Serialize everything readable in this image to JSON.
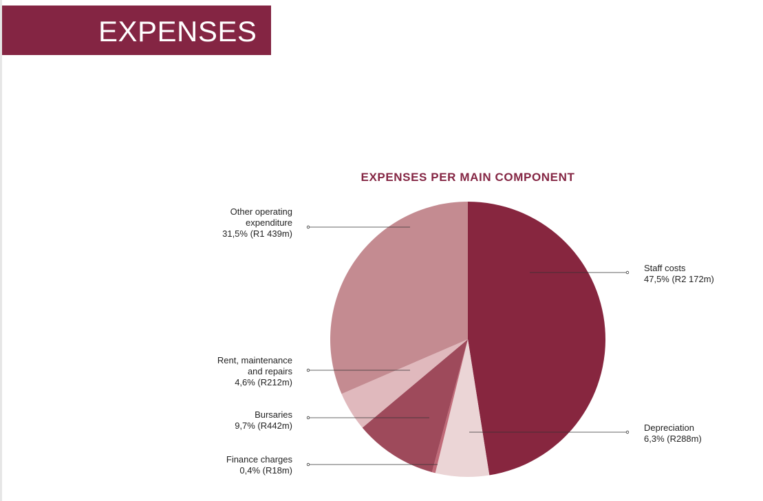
{
  "header": {
    "title": "EXPENSES"
  },
  "colors": {
    "brand": "#842543"
  },
  "chart_data": {
    "type": "pie",
    "title": "EXPENSES PER MAIN COMPONENT",
    "slices": [
      {
        "name": "Staff costs",
        "label_lines": [
          "Staff costs"
        ],
        "value_text": "47,5% (R2 172m)",
        "percent": 47.5,
        "amount_rm": 2172,
        "color": "#87263f"
      },
      {
        "name": "Depreciation",
        "label_lines": [
          "Depreciation"
        ],
        "value_text": "6,3% (R288m)",
        "percent": 6.3,
        "amount_rm": 288,
        "color": "#ebd5d6"
      },
      {
        "name": "Finance charges",
        "label_lines": [
          "Finance charges"
        ],
        "value_text": "0,4% (R18m)",
        "percent": 0.4,
        "amount_rm": 18,
        "color": "#c06a78"
      },
      {
        "name": "Bursaries",
        "label_lines": [
          "Bursaries"
        ],
        "value_text": "9,7% (R442m)",
        "percent": 9.7,
        "amount_rm": 442,
        "color": "#9e4a5b"
      },
      {
        "name": "Rent, maintenance and repairs",
        "label_lines": [
          "Rent, maintenance",
          "and repairs"
        ],
        "value_text": "4,6% (R212m)",
        "percent": 4.6,
        "amount_rm": 212,
        "color": "#e0b9bd"
      },
      {
        "name": "Other operating expenditure",
        "label_lines": [
          "Other operating",
          "expenditure"
        ],
        "value_text": "31,5% (R1 439m)",
        "percent": 31.5,
        "amount_rm": 1439,
        "color": "#c48b91"
      }
    ]
  }
}
